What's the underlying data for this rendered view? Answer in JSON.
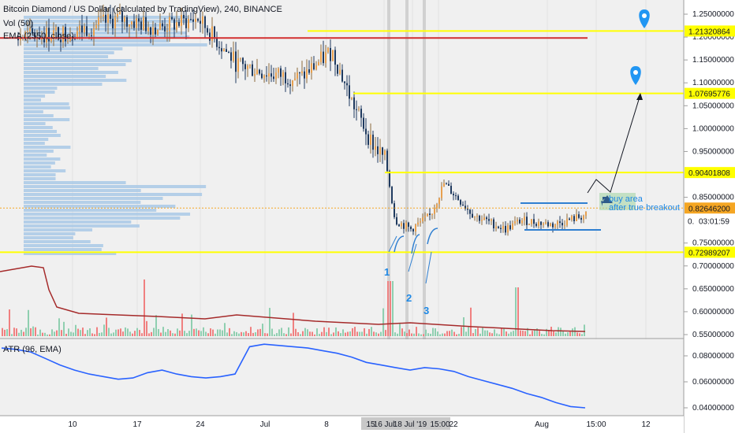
{
  "legend": {
    "title": "Bitcoin Diamond / US Dollar (calculated by TradingView), 240, BINANCE",
    "vol": "Vol (50)",
    "ema": "EMA (2550, close)",
    "atr": "ATR (96, EMA)"
  },
  "colors": {
    "background": "#f0f0f0",
    "candle_up": "#8c6a3c",
    "candle_down": "#1f3a5f",
    "candle_body": "#e8a04f",
    "level_line": "#ffff00",
    "red_line": "#d32f2f",
    "volume_profile": "#a9c9e6",
    "atr_line": "#2962ff",
    "vol_up": "#8fcfb0",
    "vol_down": "#f08080",
    "vol_ema": "#a52a2a",
    "annotation": "#1e88e5"
  },
  "chart_data": [
    {
      "type": "candlestick",
      "name": "price",
      "yaxis_labels": [
        "1.25000000",
        "1.20000000",
        "1.15000000",
        "1.10000000",
        "1.05000000",
        "1.00000000",
        "0.95000000",
        "0.85000000",
        "0.75000000",
        "0.70000000",
        "0.65000000",
        "0.60000000",
        "0.55000000"
      ],
      "ylim": [
        0.545,
        1.265
      ],
      "xaxis_labels": [
        "10",
        "17",
        "24",
        "Jul",
        "8",
        "15",
        "16 Jul",
        "18 Jul '19",
        "15:00",
        "22",
        "Aug",
        "15:00",
        "12"
      ],
      "horizontal_levels": [
        {
          "value": 1.2132,
          "label": "1.21320864"
        },
        {
          "value": 1.07696,
          "label": "1.07695776"
        },
        {
          "value": 0.90402,
          "label": "0.90401808"
        },
        {
          "value": 0.72989,
          "label": "0.72989207"
        }
      ],
      "resistance_level": 1.198,
      "current_price": {
        "value": 0.82646,
        "label": "0.82646200",
        "countdown": "03:01:59",
        "countdown_prefix": "0."
      },
      "annotations": {
        "wave_labels": [
          "1",
          "2",
          "3"
        ],
        "buy_zone": "buy area",
        "breakout_note": "after true breakout"
      }
    },
    {
      "type": "line",
      "name": "ATR (96, EMA)",
      "yaxis_labels": [
        "0.08000000",
        "0.06000000",
        "0.04000000"
      ],
      "ylim": [
        0.037,
        0.09
      ],
      "values": [
        0.086,
        0.085,
        0.083,
        0.078,
        0.073,
        0.069,
        0.066,
        0.064,
        0.062,
        0.063,
        0.067,
        0.069,
        0.066,
        0.064,
        0.063,
        0.064,
        0.066,
        0.087,
        0.089,
        0.088,
        0.087,
        0.086,
        0.084,
        0.082,
        0.079,
        0.075,
        0.073,
        0.071,
        0.069,
        0.071,
        0.07,
        0.068,
        0.064,
        0.061,
        0.058,
        0.055,
        0.051,
        0.048,
        0.044,
        0.041,
        0.04
      ]
    }
  ]
}
